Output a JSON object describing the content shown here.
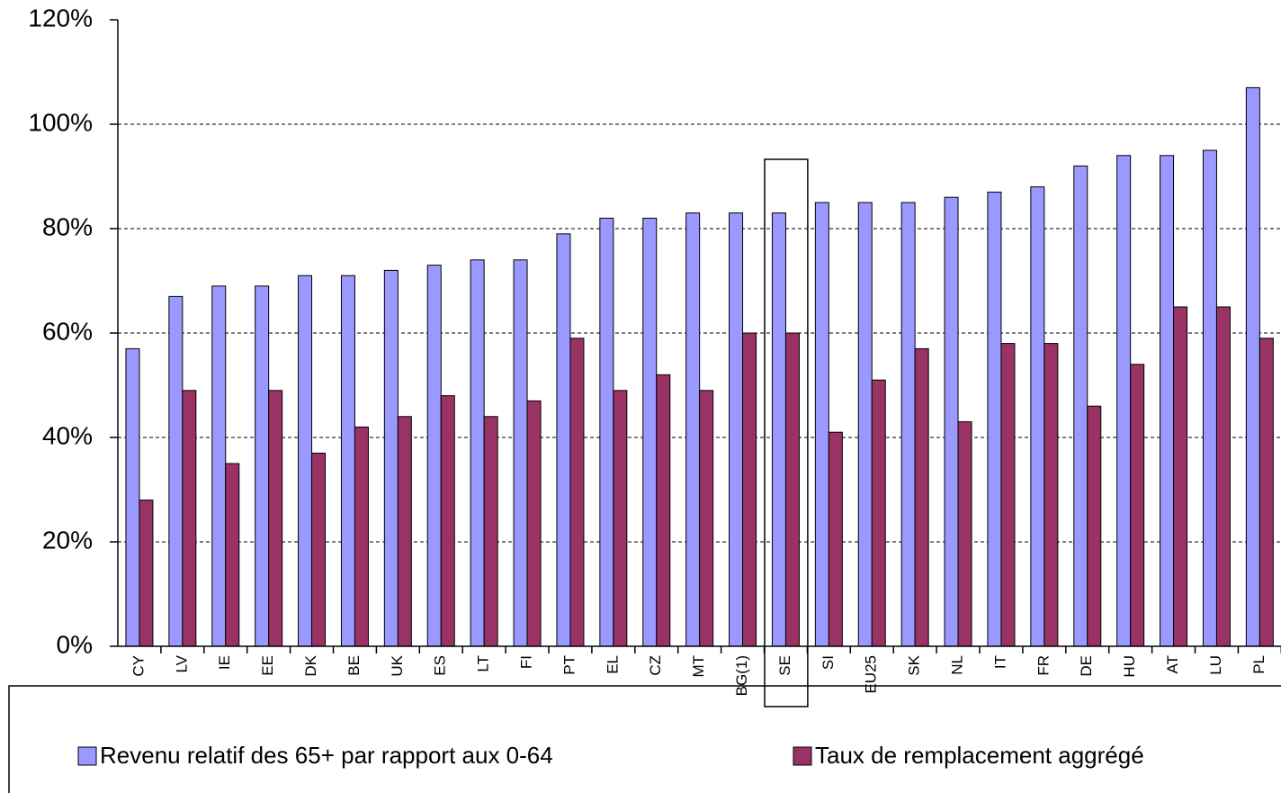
{
  "chart_data": {
    "type": "bar",
    "categories": [
      "CY",
      "LV",
      "IE",
      "EE",
      "DK",
      "BE",
      "UK",
      "ES",
      "LT",
      "FI",
      "PT",
      "EL",
      "CZ",
      "MT",
      "BG(1)",
      "SE",
      "SI",
      "EU25",
      "SK",
      "NL",
      "IT",
      "FR",
      "DE",
      "HU",
      "AT",
      "LU",
      "PL"
    ],
    "series": [
      {
        "name": "Revenu relatif des 65+ par rapport aux 0-64",
        "color": "#9999ff",
        "values": [
          57,
          67,
          69,
          69,
          71,
          71,
          72,
          73,
          74,
          74,
          79,
          82,
          82,
          83,
          83,
          83,
          85,
          85,
          85,
          86,
          87,
          88,
          92,
          94,
          94,
          95,
          107
        ]
      },
      {
        "name": "Taux de remplacement aggrégé",
        "color": "#993366",
        "values": [
          28,
          49,
          35,
          49,
          37,
          42,
          44,
          48,
          44,
          47,
          59,
          49,
          52,
          49,
          60,
          60,
          41,
          51,
          57,
          43,
          58,
          58,
          46,
          54,
          65,
          65,
          59
        ]
      }
    ],
    "ylim": [
      0,
      120
    ],
    "yticks": [
      {
        "value": 0,
        "label": "0%"
      },
      {
        "value": 20,
        "label": "20%"
      },
      {
        "value": 40,
        "label": "40%"
      },
      {
        "value": 60,
        "label": "60%"
      },
      {
        "value": 80,
        "label": "80%"
      },
      {
        "value": 100,
        "label": "100%"
      },
      {
        "value": 120,
        "label": "120%"
      }
    ],
    "grid": true
  }
}
